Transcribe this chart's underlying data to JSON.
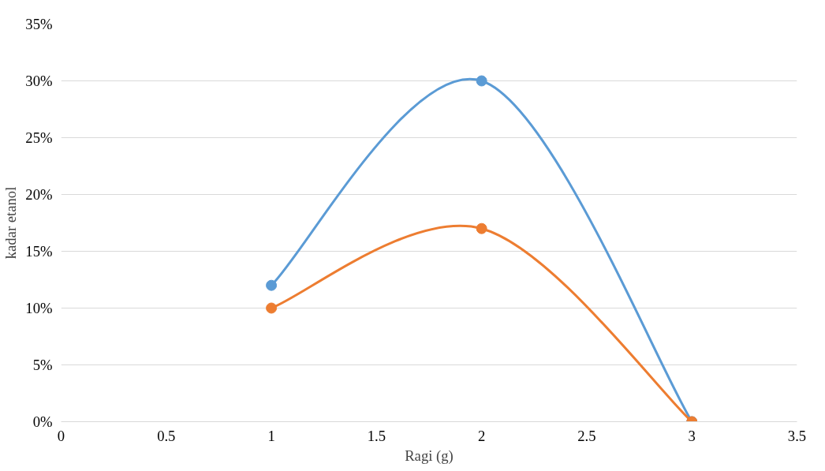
{
  "chart_data": {
    "type": "line",
    "xlabel": "Ragi (g)",
    "ylabel": "kadar etanol",
    "x": [
      1,
      2,
      3
    ],
    "series": [
      {
        "color": "#5b9bd5",
        "values": [
          12,
          30,
          0
        ]
      },
      {
        "color": "#ed7d31",
        "values": [
          10,
          17,
          0
        ]
      }
    ],
    "xlim": [
      0,
      3.5
    ],
    "xticks": [
      0,
      0.5,
      1,
      1.5,
      2,
      2.5,
      3,
      3.5
    ],
    "ylim": [
      0,
      35
    ],
    "yticks": [
      {
        "value": 0,
        "label": "0%"
      },
      {
        "value": 5,
        "label": "5%"
      },
      {
        "value": 10,
        "label": "10%"
      },
      {
        "value": 15,
        "label": "15%"
      },
      {
        "value": 20,
        "label": "20%"
      },
      {
        "value": 25,
        "label": "25%"
      },
      {
        "value": 30,
        "label": "30%"
      },
      {
        "value": 35,
        "label": "35%"
      }
    ],
    "grid": "y",
    "marker": "circle",
    "line_style": "solid"
  }
}
